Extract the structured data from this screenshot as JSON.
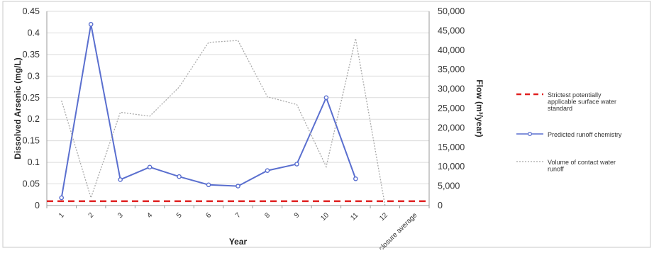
{
  "chart_data": {
    "type": "line",
    "categories": [
      "1",
      "2",
      "3",
      "4",
      "5",
      "6",
      "7",
      "8",
      "9",
      "10",
      "11",
      "12",
      "Post-closure average"
    ],
    "xlabel": "Year",
    "ylabel": "Dissolved Arsenic (mg/L)",
    "y2label": "Flow (m³/year)",
    "ylim": [
      0,
      0.45
    ],
    "y2lim": [
      0,
      50000
    ],
    "yticks": [
      "0",
      "0.05",
      "0.1",
      "0.15",
      "0.2",
      "0.25",
      "0.3",
      "0.35",
      "0.4",
      "0.45"
    ],
    "y2ticks": [
      "0",
      "5,000",
      "10,000",
      "15,000",
      "20,000",
      "25,000",
      "30,000",
      "35,000",
      "40,000",
      "45,000",
      "50,000"
    ],
    "legend_position": "right",
    "series": [
      {
        "name": "Strictest potentially applicable surface water standard",
        "axis": "left",
        "style": "dashed",
        "color": "#e02020",
        "values": [
          0.01,
          0.01,
          0.01,
          0.01,
          0.01,
          0.01,
          0.01,
          0.01,
          0.01,
          0.01,
          0.01,
          0.01,
          0.01
        ]
      },
      {
        "name": "Predicted runoff chemistry",
        "axis": "left",
        "style": "solid-markers",
        "color": "#5a6fcf",
        "values": [
          0.018,
          0.42,
          0.06,
          0.089,
          0.067,
          0.048,
          0.045,
          0.081,
          0.096,
          0.25,
          0.062,
          null,
          null
        ]
      },
      {
        "name": "Volume of contact water runoff",
        "axis": "right",
        "style": "dotted",
        "color": "#a8a8a8",
        "values": [
          27000,
          2000,
          24000,
          23000,
          30500,
          42000,
          42500,
          28000,
          26000,
          10000,
          43000,
          0,
          null
        ]
      }
    ]
  },
  "legend": [
    {
      "text": "Strictest potentially applicable surface water standard",
      "lines": [
        "Strictest potentially",
        "applicable surface water",
        "standard"
      ]
    },
    {
      "text": "Predicted runoff chemistry",
      "lines": [
        "Predicted runoff chemistry"
      ]
    },
    {
      "text": "Volume of contact water runoff",
      "lines": [
        "Volume of contact water",
        "runoff"
      ]
    }
  ]
}
